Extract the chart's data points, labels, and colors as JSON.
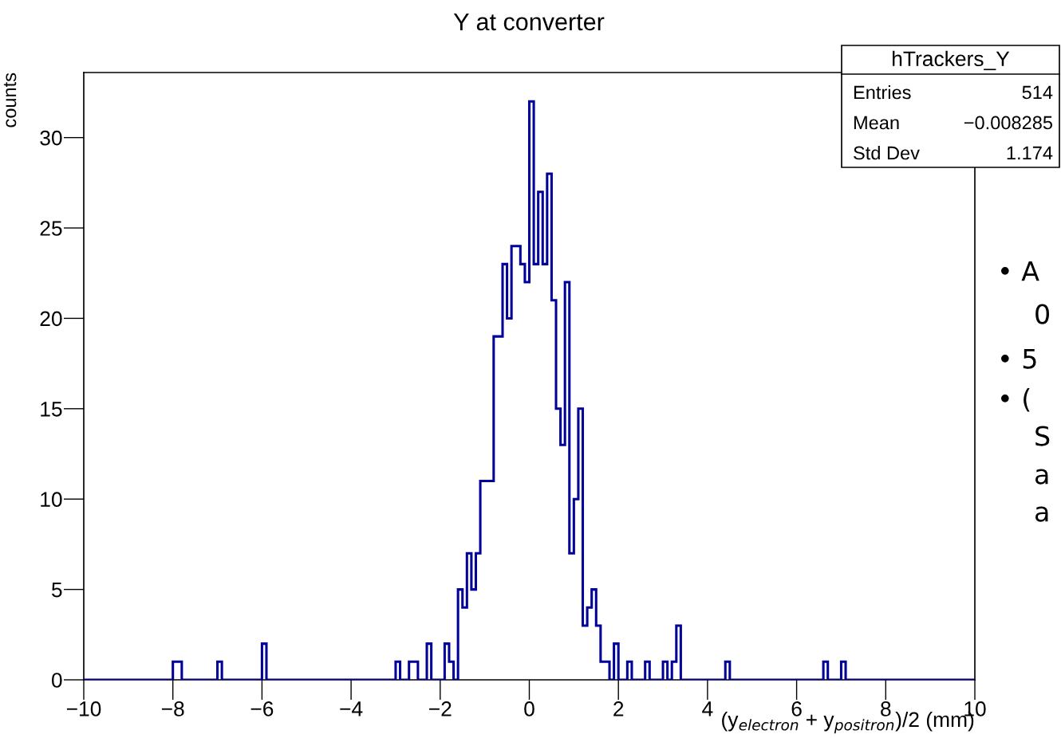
{
  "chart_data": {
    "type": "histogram",
    "title": "Y at converter",
    "xlabel": "(y$_{electron}$ + y$_{positron}$)/2 (mm)",
    "ylabel": "counts",
    "color": "#000099",
    "bins": [
      -10,
      -8,
      -7.9,
      -7.8,
      -7,
      -6.9,
      -6,
      -5.9,
      -3,
      -2.9,
      -2.7,
      -2.6,
      -2.5,
      -2.3,
      -2.2,
      -1.9,
      -1.8,
      -1.7,
      -1.6,
      -1.5,
      -1.4,
      -1.3,
      -1.2,
      -1.1,
      -1,
      -0.9,
      -0.8,
      -0.7,
      -0.6,
      -0.5,
      -0.4,
      -0.3,
      -0.2,
      -0.1,
      0,
      0.1,
      0.2,
      0.3,
      0.4,
      0.5,
      0.6,
      0.7,
      0.8,
      0.9,
      1,
      1.1,
      1.2,
      1.3,
      1.4,
      1.5,
      1.6,
      1.7,
      1.8,
      1.9,
      2,
      2.2,
      2.3,
      2.6,
      2.7,
      3,
      3.1,
      3.2,
      3.3,
      3.4,
      4.4,
      4.5,
      6.6,
      6.7,
      7,
      7.1,
      10
    ],
    "values": [
      0,
      1,
      1,
      0,
      1,
      0,
      2,
      0,
      1,
      0,
      1,
      1,
      0,
      2,
      0,
      2,
      1,
      0,
      5,
      4,
      7,
      5,
      7,
      11,
      11,
      11,
      19,
      19,
      23,
      20,
      24,
      24,
      23,
      22,
      32,
      23,
      27,
      23,
      28,
      21,
      15,
      13,
      22,
      7,
      10,
      15,
      3,
      4,
      5,
      3,
      1,
      1,
      0,
      2,
      0,
      1,
      0,
      1,
      0,
      1,
      0,
      1,
      3,
      0,
      1,
      0,
      1,
      0,
      1,
      0
    ],
    "xlim": [
      -10,
      10
    ],
    "xticks": [
      {
        "value": -10,
        "label": "−10"
      },
      {
        "value": -8,
        "label": "−8"
      },
      {
        "value": -6,
        "label": "−6"
      },
      {
        "value": -4,
        "label": "−4"
      },
      {
        "value": -2,
        "label": "−2"
      },
      0,
      2,
      4,
      6,
      8,
      10
    ],
    "ylim": [
      0,
      33.6
    ],
    "yticks": [
      0,
      5,
      10,
      15,
      20,
      25,
      30
    ],
    "grid": false,
    "legend": false,
    "annotations": [
      "hTrackers_Y",
      "Entries",
      "514",
      "Mean",
      "−0.008285",
      "Std Dev",
      "1.174",
      "• A",
      "0",
      "• 5",
      "• (",
      "S",
      "a",
      "a"
    ]
  }
}
